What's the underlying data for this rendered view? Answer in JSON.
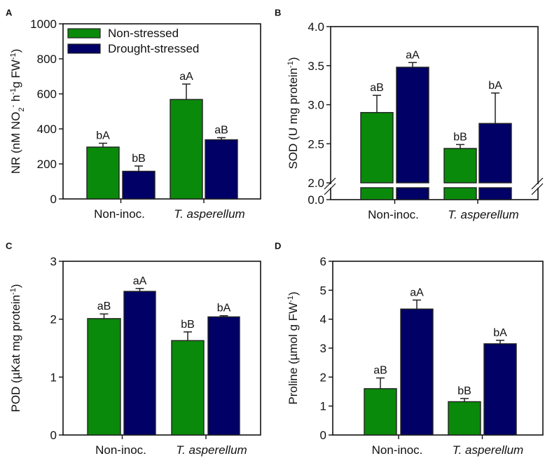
{
  "colors": {
    "non_stressed": "#0a8a0a",
    "drought_stressed": "#000066",
    "axis": "#111111"
  },
  "legend": {
    "placement": "top-left (panel A)",
    "entries": [
      "Non-stressed",
      "Drought-stressed"
    ]
  },
  "chart_data": [
    {
      "panel": "A",
      "type": "bar",
      "categories": [
        "Non-inoc.",
        "T. asperellum"
      ],
      "ylabel_parts": [
        [
          "NR (nM NO",
          ""
        ],
        [
          "2",
          "sub"
        ],
        [
          "-",
          "sup"
        ],
        [
          " h",
          ""
        ],
        [
          "-1",
          "sup"
        ],
        [
          "g FW",
          ""
        ],
        [
          "-1",
          "sup"
        ],
        [
          ")",
          ""
        ]
      ],
      "ylim": [
        0,
        1000
      ],
      "yticks": [
        0,
        200,
        400,
        600,
        800,
        1000
      ],
      "series": [
        {
          "name": "Non-stressed",
          "values": [
            296,
            568
          ],
          "errors": [
            22,
            88
          ],
          "letters": [
            "bA",
            "aA"
          ]
        },
        {
          "name": "Drought-stressed",
          "values": [
            158,
            338
          ],
          "errors": [
            30,
            12
          ],
          "letters": [
            "bB",
            "aB"
          ]
        }
      ]
    },
    {
      "panel": "B",
      "type": "bar",
      "axis_break": [
        0.0,
        2.0
      ],
      "categories": [
        "Non-inoc.",
        "T. asperellum"
      ],
      "ylabel_parts": [
        [
          "SOD (U mg protein",
          ""
        ],
        [
          "-1",
          "sup"
        ],
        [
          ")",
          ""
        ]
      ],
      "ylim": [
        0,
        4.0
      ],
      "yticks": [
        "0.0",
        "2.0",
        "2.5",
        "3.0",
        "3.5",
        "4.0"
      ],
      "series": [
        {
          "name": "Non-stressed",
          "values": [
            2.9,
            2.44
          ],
          "errors": [
            0.22,
            0.05
          ],
          "letters": [
            "aB",
            "bB"
          ]
        },
        {
          "name": "Drought-stressed",
          "values": [
            3.48,
            2.76
          ],
          "errors": [
            0.06,
            0.39
          ],
          "letters": [
            "aA",
            "bA"
          ]
        }
      ]
    },
    {
      "panel": "C",
      "type": "bar",
      "categories": [
        "Non-inoc.",
        "T. asperellum"
      ],
      "ylabel_parts": [
        [
          "POD (µKat mg protein",
          ""
        ],
        [
          "-1",
          "sup"
        ],
        [
          ")",
          ""
        ]
      ],
      "ylim": [
        0,
        3
      ],
      "yticks": [
        0,
        1,
        2,
        3
      ],
      "series": [
        {
          "name": "Non-stressed",
          "values": [
            2.01,
            1.63
          ],
          "errors": [
            0.08,
            0.15
          ],
          "letters": [
            "aB",
            "bB"
          ]
        },
        {
          "name": "Drought-stressed",
          "values": [
            2.48,
            2.04
          ],
          "errors": [
            0.05,
            0.02
          ],
          "letters": [
            "aA",
            "bA"
          ]
        }
      ]
    },
    {
      "panel": "D",
      "type": "bar",
      "categories": [
        "Non-inoc.",
        "T. asperellum"
      ],
      "ylabel_parts": [
        [
          "Proline (µmol g FW",
          ""
        ],
        [
          "-1",
          "sup"
        ],
        [
          ")",
          ""
        ]
      ],
      "ylim": [
        0,
        6
      ],
      "yticks": [
        0,
        1,
        2,
        3,
        4,
        5,
        6
      ],
      "series": [
        {
          "name": "Non-stressed",
          "values": [
            1.6,
            1.15
          ],
          "errors": [
            0.37,
            0.11
          ],
          "letters": [
            "aB",
            "bB"
          ]
        },
        {
          "name": "Drought-stressed",
          "values": [
            4.35,
            3.15
          ],
          "errors": [
            0.31,
            0.12
          ],
          "letters": [
            "aA",
            "bA"
          ]
        }
      ]
    }
  ]
}
